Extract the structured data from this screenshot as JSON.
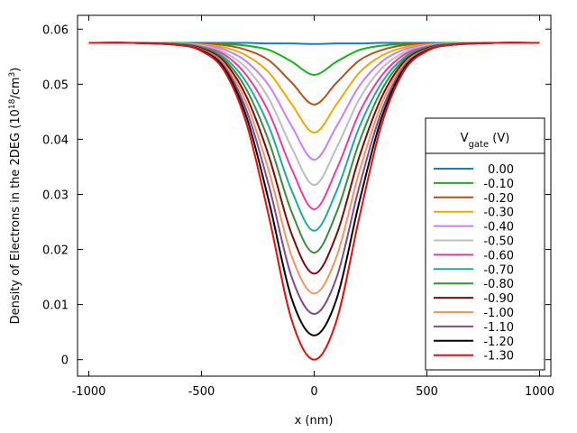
{
  "chart_data": {
    "type": "line",
    "xlabel": "x (nm)",
    "ylabel": {
      "prefix": "Density of Electrons in the 2DEG (10",
      "sup1": "18",
      "middle": "/cm",
      "sup2": "3",
      "suffix": ")"
    },
    "xlim": [
      -1050,
      1050
    ],
    "ylim": [
      -0.003,
      0.0625
    ],
    "x_ticks": [
      -1000,
      -500,
      0,
      500,
      1000
    ],
    "x_tick_labels": [
      "-1000",
      "-500",
      "0",
      "500",
      "1000"
    ],
    "y_ticks": [
      0,
      0.01,
      0.02,
      0.03,
      0.04,
      0.05,
      0.06
    ],
    "y_tick_labels": [
      "0",
      "0.01",
      "0.02",
      "0.03",
      "0.04",
      "0.05",
      "0.06"
    ],
    "grid": false,
    "legend": {
      "title_main": "V",
      "title_sub": "gate",
      "title_unit": " (V)",
      "placement": "right"
    },
    "x": [
      -1000,
      -800,
      -600,
      -500,
      -400,
      -300,
      -200,
      -100,
      0,
      100,
      200,
      300,
      400,
      500,
      600,
      800,
      1000
    ],
    "series": [
      {
        "name": "0.00",
        "color": "#1f77d0",
        "values": [
          0.0575,
          0.0575,
          0.0575,
          0.0575,
          0.0575,
          0.0575,
          0.0574,
          0.0574,
          0.0573,
          0.0574,
          0.0574,
          0.0575,
          0.0575,
          0.0575,
          0.0575,
          0.0575,
          0.0575
        ]
      },
      {
        "name": "-0.10",
        "color": "#16b316",
        "values": [
          0.0575,
          0.0575,
          0.0575,
          0.0574,
          0.0573,
          0.057,
          0.0562,
          0.0541,
          0.0517,
          0.0541,
          0.0562,
          0.057,
          0.0573,
          0.0574,
          0.0575,
          0.0575,
          0.0575
        ]
      },
      {
        "name": "-0.20",
        "color": "#b4501a",
        "values": [
          0.0575,
          0.0575,
          0.0574,
          0.0573,
          0.0571,
          0.0562,
          0.0543,
          0.0503,
          0.0463,
          0.0503,
          0.0543,
          0.0562,
          0.0571,
          0.0573,
          0.0574,
          0.0575,
          0.0575
        ]
      },
      {
        "name": "-0.30",
        "color": "#f0a800",
        "values": [
          0.0575,
          0.0575,
          0.0574,
          0.0572,
          0.0567,
          0.0552,
          0.0521,
          0.0464,
          0.0412,
          0.0464,
          0.0521,
          0.0552,
          0.0567,
          0.0572,
          0.0574,
          0.0575,
          0.0575
        ]
      },
      {
        "name": "-0.40",
        "color": "#c77dff",
        "values": [
          0.0575,
          0.0575,
          0.0574,
          0.0571,
          0.0563,
          0.0541,
          0.0497,
          0.0424,
          0.0363,
          0.0424,
          0.0497,
          0.0541,
          0.0563,
          0.0571,
          0.0574,
          0.0575,
          0.0575
        ]
      },
      {
        "name": "-0.50",
        "color": "#bdbdbd",
        "values": [
          0.0575,
          0.0575,
          0.0573,
          0.057,
          0.0558,
          0.0529,
          0.0473,
          0.0385,
          0.0317,
          0.0385,
          0.0473,
          0.0529,
          0.0558,
          0.057,
          0.0573,
          0.0575,
          0.0575
        ]
      },
      {
        "name": "-0.60",
        "color": "#ee3aa0",
        "values": [
          0.0575,
          0.0575,
          0.0573,
          0.0568,
          0.0554,
          0.0516,
          0.0448,
          0.0346,
          0.0273,
          0.0346,
          0.0448,
          0.0516,
          0.0554,
          0.0568,
          0.0573,
          0.0575,
          0.0575
        ]
      },
      {
        "name": "-0.70",
        "color": "#20a8a0",
        "values": [
          0.0575,
          0.0575,
          0.0573,
          0.0567,
          0.0549,
          0.0503,
          0.0422,
          0.0307,
          0.0234,
          0.0307,
          0.0422,
          0.0503,
          0.0549,
          0.0567,
          0.0573,
          0.0575,
          0.0575
        ]
      },
      {
        "name": "-0.80",
        "color": "#3c8a3c",
        "values": [
          0.0575,
          0.0575,
          0.0572,
          0.0566,
          0.0545,
          0.049,
          0.0395,
          0.0268,
          0.0194,
          0.0268,
          0.0395,
          0.049,
          0.0545,
          0.0566,
          0.0572,
          0.0575,
          0.0575
        ]
      },
      {
        "name": "-0.90",
        "color": "#7a0a0a",
        "values": [
          0.0575,
          0.0575,
          0.0572,
          0.0565,
          0.0541,
          0.0477,
          0.0368,
          0.0228,
          0.0156,
          0.0228,
          0.0368,
          0.0477,
          0.0541,
          0.0565,
          0.0572,
          0.0575,
          0.0575
        ]
      },
      {
        "name": "-1.00",
        "color": "#f59460",
        "values": [
          0.0575,
          0.0575,
          0.0572,
          0.0563,
          0.0537,
          0.0465,
          0.0341,
          0.0188,
          0.012,
          0.0188,
          0.0341,
          0.0465,
          0.0537,
          0.0563,
          0.0572,
          0.0575,
          0.0575
        ]
      },
      {
        "name": "-1.10",
        "color": "#7e4a90",
        "values": [
          0.0575,
          0.0575,
          0.0572,
          0.0562,
          0.0533,
          0.0452,
          0.0314,
          0.015,
          0.0083,
          0.015,
          0.0314,
          0.0452,
          0.0533,
          0.0562,
          0.0572,
          0.0575,
          0.0575
        ]
      },
      {
        "name": "-1.20",
        "color": "#000000",
        "values": [
          0.0575,
          0.0575,
          0.0571,
          0.0561,
          0.0529,
          0.044,
          0.0286,
          0.0111,
          0.0044,
          0.0111,
          0.0286,
          0.044,
          0.0529,
          0.0561,
          0.0571,
          0.0575,
          0.0575
        ]
      },
      {
        "name": "-1.30",
        "color": "#e01010",
        "values": [
          0.0575,
          0.0575,
          0.0571,
          0.056,
          0.0525,
          0.0428,
          0.0258,
          0.0072,
          0.0,
          0.0072,
          0.0258,
          0.0428,
          0.0525,
          0.056,
          0.0571,
          0.0575,
          0.0575
        ]
      }
    ]
  }
}
